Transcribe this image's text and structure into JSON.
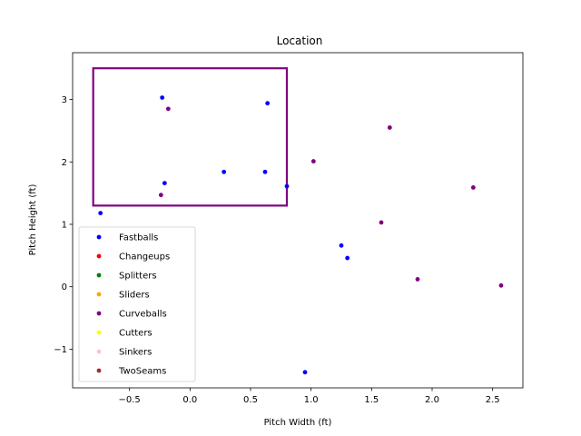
{
  "chart_data": {
    "type": "scatter",
    "title": "Location",
    "xlabel": "Pitch Width (ft)",
    "ylabel": "Pitch Height (ft)",
    "xlim": [
      -0.97,
      2.75
    ],
    "ylim": [
      -1.62,
      3.75
    ],
    "xticks": [
      -0.5,
      0.0,
      0.5,
      1.0,
      1.5,
      2.0,
      2.5
    ],
    "xtick_labels": [
      "−0.5",
      "0.0",
      "0.5",
      "1.0",
      "1.5",
      "2.0",
      "2.5"
    ],
    "yticks": [
      -1,
      0,
      1,
      2,
      3
    ],
    "ytick_labels": [
      "−1",
      "0",
      "1",
      "2",
      "3"
    ],
    "grid": false,
    "legend_position": "lower-left",
    "strike_zone": {
      "x": [
        -0.8,
        0.8
      ],
      "y": [
        1.3,
        3.5
      ],
      "color": "#800080"
    },
    "series": [
      {
        "name": "Fastballs",
        "color": "#0000ff",
        "points": [
          [
            -0.23,
            3.03
          ],
          [
            0.64,
            2.94
          ],
          [
            0.28,
            1.84
          ],
          [
            0.62,
            1.84
          ],
          [
            -0.21,
            1.66
          ],
          [
            0.8,
            1.61
          ],
          [
            -0.74,
            1.18
          ],
          [
            1.25,
            0.66
          ],
          [
            1.3,
            0.46
          ],
          [
            0.95,
            -1.37
          ]
        ]
      },
      {
        "name": "Changeups",
        "color": "#ff0000",
        "points": []
      },
      {
        "name": "Splitters",
        "color": "#008000",
        "points": []
      },
      {
        "name": "Sliders",
        "color": "#ffa500",
        "points": []
      },
      {
        "name": "Curveballs",
        "color": "#800080",
        "points": [
          [
            -0.18,
            2.85
          ],
          [
            1.65,
            2.55
          ],
          [
            1.02,
            2.01
          ],
          [
            2.34,
            1.59
          ],
          [
            -0.24,
            1.47
          ],
          [
            1.58,
            1.03
          ],
          [
            1.88,
            0.12
          ],
          [
            2.57,
            0.02
          ]
        ]
      },
      {
        "name": "Cutters",
        "color": "#ffff00",
        "points": []
      },
      {
        "name": "Sinkers",
        "color": "#ffc0cb",
        "points": []
      },
      {
        "name": "TwoSeams",
        "color": "#a52a2a",
        "points": []
      }
    ]
  }
}
